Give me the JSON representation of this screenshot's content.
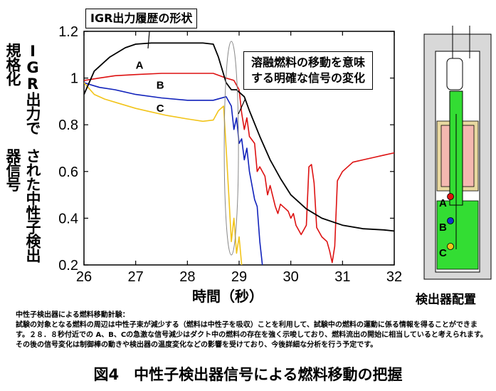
{
  "chart_data": {
    "type": "line",
    "xlabel": "時間（秒）",
    "ylabel_lines": [
      "IGR出力で規格化",
      "された中性子検出器信号"
    ],
    "xlim": [
      26,
      32
    ],
    "ylim": [
      0.2,
      1.2
    ],
    "xticks": [
      "26",
      "27",
      "28",
      "29",
      "30",
      "31",
      "32"
    ],
    "yticks": [
      "0.2",
      "0.4",
      "0.6",
      "0.8",
      "1",
      "1.2"
    ],
    "series": [
      {
        "name": "A",
        "color": "#dd1111",
        "x": [
          26.0,
          26.3,
          26.6,
          27.0,
          27.5,
          28.0,
          28.5,
          28.75,
          28.9,
          29.0,
          29.05,
          29.1,
          29.15,
          29.2,
          29.3,
          29.35,
          29.4,
          29.5,
          29.55,
          29.6,
          29.7,
          29.75,
          29.8,
          29.9,
          29.95,
          30.0,
          30.05,
          30.1,
          30.2,
          30.3,
          30.35,
          30.4,
          30.45,
          30.5,
          30.6,
          30.7,
          30.75,
          30.8,
          30.85,
          30.9,
          31.0,
          31.2,
          31.4,
          31.6,
          31.8,
          32.0
        ],
        "y": [
          0.99,
          1.0,
          1.01,
          1.015,
          1.02,
          1.02,
          1.02,
          1.0,
          0.99,
          0.95,
          0.85,
          0.78,
          0.83,
          0.75,
          0.72,
          0.6,
          0.62,
          0.58,
          0.5,
          0.54,
          0.45,
          0.42,
          0.46,
          0.44,
          0.43,
          0.4,
          0.42,
          0.37,
          0.33,
          0.37,
          0.62,
          0.63,
          0.55,
          0.36,
          0.32,
          0.3,
          0.26,
          0.21,
          0.28,
          0.56,
          0.6,
          0.64,
          0.65,
          0.66,
          0.67,
          0.68
        ]
      },
      {
        "name": "B",
        "color": "#1122bb",
        "x": [
          26.0,
          26.3,
          26.6,
          27.0,
          27.5,
          28.0,
          28.5,
          28.75,
          28.85,
          28.9,
          28.95,
          29.0,
          29.05,
          29.1,
          29.15,
          29.2,
          29.3,
          29.35,
          29.4,
          29.45
        ],
        "y": [
          0.98,
          0.96,
          0.95,
          0.93,
          0.915,
          0.905,
          0.905,
          0.92,
          0.88,
          0.78,
          0.83,
          0.72,
          0.74,
          0.65,
          0.7,
          0.6,
          0.48,
          0.45,
          0.3,
          0.2
        ]
      },
      {
        "name": "C",
        "color": "#f2c41a",
        "x": [
          26.0,
          26.2,
          26.4,
          26.7,
          27.0,
          27.3,
          27.6,
          28.0,
          28.3,
          28.5,
          28.6,
          28.7,
          28.75,
          28.8,
          28.85,
          28.9,
          28.95,
          29.0,
          29.05
        ],
        "y": [
          0.98,
          0.93,
          0.91,
          0.89,
          0.87,
          0.855,
          0.84,
          0.825,
          0.815,
          0.82,
          0.86,
          0.88,
          0.7,
          0.5,
          0.3,
          0.4,
          0.25,
          0.32,
          0.2
        ]
      },
      {
        "name": "IGR",
        "color": "#000000",
        "x": [
          26.0,
          26.2,
          26.5,
          26.8,
          27.0,
          27.3,
          27.6,
          28.0,
          28.3,
          28.5,
          28.6,
          28.75,
          28.85,
          28.95,
          29.0,
          29.1,
          29.2,
          29.4,
          29.6,
          29.8,
          30.0,
          30.3,
          30.6,
          31.0,
          31.4,
          31.8,
          32.0
        ],
        "y": [
          0.93,
          1.03,
          1.09,
          1.13,
          1.145,
          1.15,
          1.15,
          1.15,
          1.15,
          1.145,
          1.09,
          0.98,
          0.95,
          0.95,
          0.94,
          0.92,
          0.86,
          0.75,
          0.65,
          0.57,
          0.5,
          0.44,
          0.4,
          0.37,
          0.355,
          0.35,
          0.345
        ]
      }
    ],
    "annotations": [
      {
        "text": "A",
        "x": 27.0,
        "y": 1.04
      },
      {
        "text": "B",
        "x": 27.4,
        "y": 0.955
      },
      {
        "text": "C",
        "x": 27.4,
        "y": 0.855
      }
    ]
  },
  "callouts": {
    "igr": "IGR出力履歴の形状",
    "signal_line1": "溶融燃料の移動を意味",
    "signal_line2": "する明確な信号の変化"
  },
  "detector": {
    "title": "検出器配置",
    "labels": [
      "A",
      "B",
      "C"
    ]
  },
  "note": {
    "heading": "中性子検出器による燃料移動計験：",
    "body": "試験の対象となる燃料の周辺は中性子束が減少する（燃料は中性子を吸収）ことを利用して、試験中の燃料の運動に係る情報を得ることができます。２８．８秒付近での A、B、Cの急激な信号減少はダクト中の燃料の存在を強く示唆しており、燃料流出の開始に相当していると考えられます。その後の信号変化は制御棒の動きや検出器の温度変化などの影響を受けており、今後詳細な分析を行う予定です。"
  },
  "caption": "図4　中性子検出器信号による燃料移動の把握"
}
